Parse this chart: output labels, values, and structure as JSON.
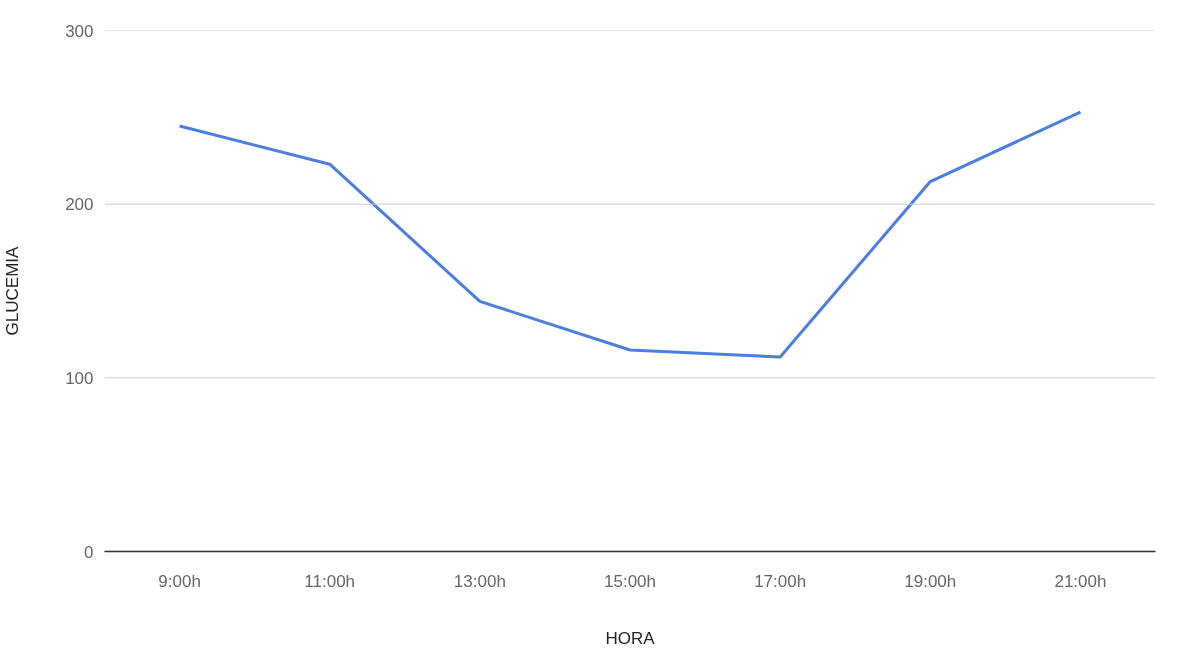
{
  "chart_data": {
    "type": "line",
    "xlabel": "HORA",
    "ylabel": "GLUCEMIA",
    "categories": [
      "9:00h",
      "11:00h",
      "13:00h",
      "15:00h",
      "17:00h",
      "19:00h",
      "21:00h"
    ],
    "series": [
      {
        "color": "#4a7fe0",
        "values": [
          245,
          223,
          144,
          116,
          112,
          213,
          253
        ]
      }
    ],
    "ylim": [
      0,
      300
    ],
    "yticks": [
      0,
      100,
      200,
      300
    ],
    "grid": "y"
  }
}
